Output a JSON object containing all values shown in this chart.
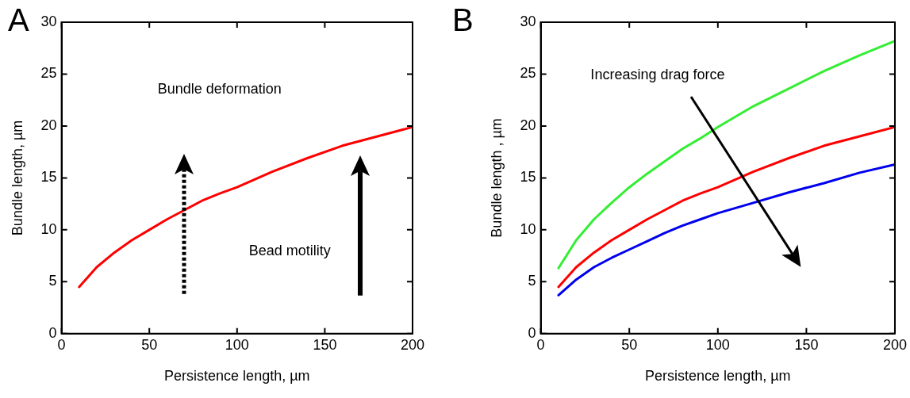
{
  "chart_data": [
    {
      "type": "line",
      "title": "A",
      "xlabel": "Persistence length, µm",
      "ylabel": "Bundle length, µm",
      "xlim": [
        0,
        200
      ],
      "xticks": [
        0,
        50,
        100,
        150,
        200
      ],
      "ylim": [
        0,
        30
      ],
      "yticks": [
        0,
        5,
        10,
        15,
        20,
        25,
        30
      ],
      "grid": false,
      "legend": false,
      "marker": "none",
      "line_style": "solid",
      "x": [
        10,
        20,
        30,
        40,
        50,
        60,
        70,
        80,
        90,
        100,
        120,
        140,
        160,
        180,
        200
      ],
      "series": [
        {
          "color": "#ff0000",
          "values": [
            4.5,
            6.4,
            7.8,
            9.0,
            10.0,
            11.0,
            11.9,
            12.8,
            13.5,
            14.1,
            15.6,
            16.9,
            18.1,
            19.0,
            19.9
          ]
        }
      ],
      "annotations": [
        "Bundle deformation",
        "Bead motility"
      ]
    },
    {
      "type": "line",
      "title": "B",
      "xlabel": "Persistence length, µm",
      "ylabel": "Bundle length , µm",
      "xlim": [
        0,
        200
      ],
      "xticks": [
        0,
        50,
        100,
        150,
        200
      ],
      "ylim": [
        0,
        30
      ],
      "yticks": [
        0,
        5,
        10,
        15,
        20,
        25,
        30
      ],
      "grid": false,
      "legend": false,
      "marker": "none",
      "line_style": "solid",
      "x": [
        10,
        20,
        30,
        40,
        50,
        60,
        70,
        80,
        90,
        100,
        120,
        140,
        160,
        180,
        200
      ],
      "series": [
        {
          "color": "#33ee33",
          "values": [
            6.3,
            9.0,
            11.0,
            12.6,
            14.1,
            15.4,
            16.6,
            17.8,
            18.8,
            19.9,
            21.9,
            23.6,
            25.3,
            26.8,
            28.2
          ]
        },
        {
          "color": "#ff0000",
          "values": [
            4.5,
            6.4,
            7.8,
            9.0,
            10.0,
            11.0,
            11.9,
            12.8,
            13.5,
            14.1,
            15.6,
            16.9,
            18.1,
            19.0,
            19.9
          ]
        },
        {
          "color": "#0000ee",
          "values": [
            3.7,
            5.2,
            6.4,
            7.3,
            8.1,
            8.9,
            9.7,
            10.4,
            11.0,
            11.6,
            12.6,
            13.6,
            14.5,
            15.5,
            16.3
          ]
        }
      ],
      "annotations": [
        "Increasing drag force"
      ]
    }
  ]
}
